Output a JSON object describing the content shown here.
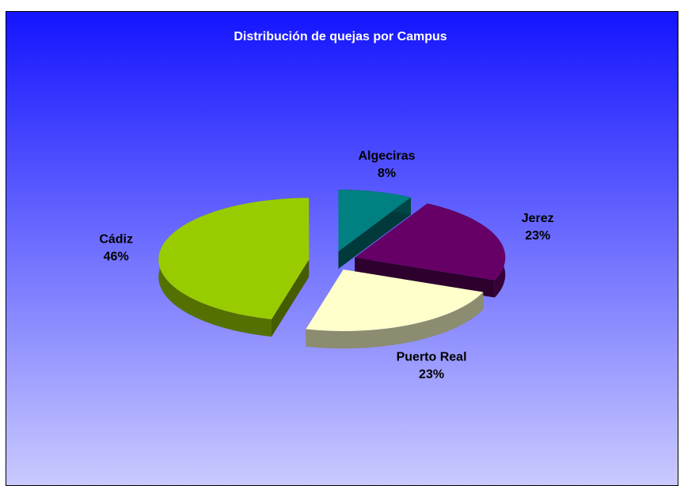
{
  "chart_data": {
    "type": "pie",
    "title": "Distribución de quejas por Campus",
    "categories": [
      "Algeciras",
      "Jerez",
      "Puerto Real",
      "Cádiz"
    ],
    "values": [
      8,
      23,
      23,
      46
    ],
    "value_labels": [
      "8%",
      "23%",
      "23%",
      "46%"
    ],
    "colors": [
      "#008080",
      "#660066",
      "#ffffcc",
      "#99cc00"
    ]
  }
}
